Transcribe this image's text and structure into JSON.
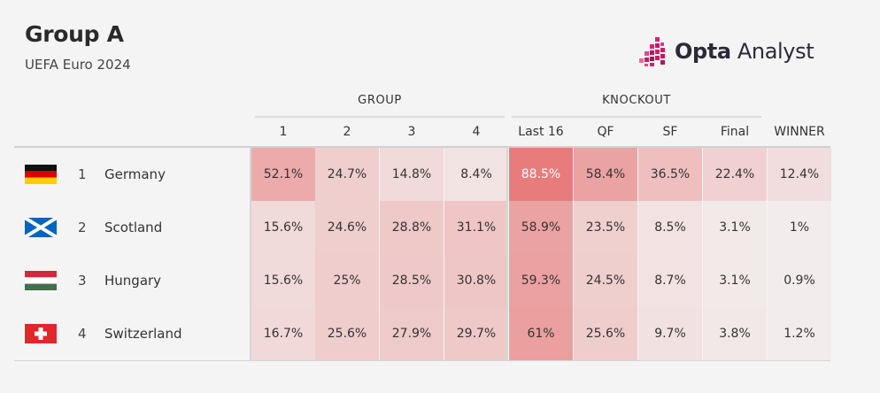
{
  "title": "Group A",
  "subtitle": "UEFA Euro 2024",
  "brand": {
    "bold": "Opta",
    "rest": " Analyst"
  },
  "colors": {
    "heat": "#e45c5c",
    "background": "#f4f4f4"
  },
  "chart_data": {
    "type": "table",
    "title": "Group A",
    "subtitle": "UEFA Euro 2024",
    "group_headers": [
      "GROUP",
      "KNOCKOUT"
    ],
    "columns": [
      "1",
      "2",
      "3",
      "4",
      "Last 16",
      "QF",
      "SF",
      "Final",
      "WINNER"
    ],
    "rows": [
      {
        "rank": "1",
        "team": "Germany",
        "flag": "germany-flag",
        "values": [
          "52.1%",
          "24.7%",
          "14.8%",
          "8.4%",
          "88.5%",
          "58.4%",
          "36.5%",
          "22.4%",
          "12.4%"
        ],
        "numeric": [
          52.1,
          24.7,
          14.8,
          8.4,
          88.5,
          58.4,
          36.5,
          22.4,
          12.4
        ]
      },
      {
        "rank": "2",
        "team": "Scotland",
        "flag": "scotland-flag",
        "values": [
          "15.6%",
          "24.6%",
          "28.8%",
          "31.1%",
          "58.9%",
          "23.5%",
          "8.5%",
          "3.1%",
          "1%"
        ],
        "numeric": [
          15.6,
          24.6,
          28.8,
          31.1,
          58.9,
          23.5,
          8.5,
          3.1,
          1
        ]
      },
      {
        "rank": "3",
        "team": "Hungary",
        "flag": "hungary-flag",
        "values": [
          "15.6%",
          "25%",
          "28.5%",
          "30.8%",
          "59.3%",
          "24.5%",
          "8.7%",
          "3.1%",
          "0.9%"
        ],
        "numeric": [
          15.6,
          25,
          28.5,
          30.8,
          59.3,
          24.5,
          8.7,
          3.1,
          0.9
        ]
      },
      {
        "rank": "4",
        "team": "Switzerland",
        "flag": "switzerland-flag",
        "values": [
          "16.7%",
          "25.6%",
          "27.9%",
          "29.7%",
          "61%",
          "25.6%",
          "9.7%",
          "3.8%",
          "1.2%"
        ],
        "numeric": [
          16.7,
          25.6,
          27.9,
          29.7,
          61,
          25.6,
          9.7,
          3.8,
          1.2
        ]
      }
    ]
  }
}
